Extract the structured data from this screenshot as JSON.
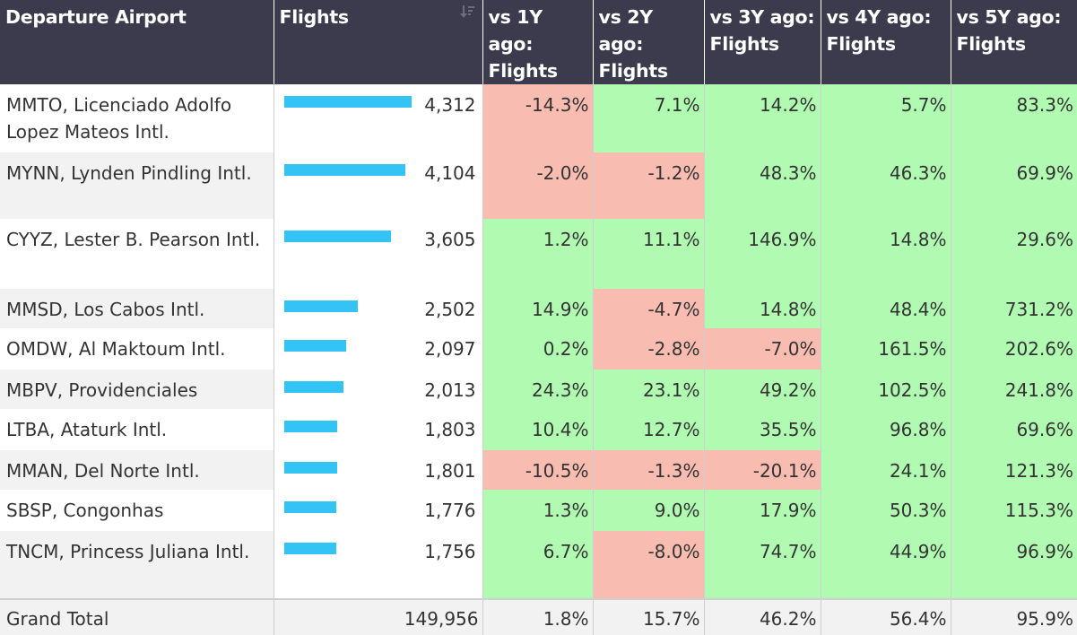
{
  "headers": {
    "airport": "Departure Airport",
    "flights": "Flights",
    "vs1": "vs 1Y ago: Flights",
    "vs2": "vs 2Y ago: Flights",
    "vs3": "vs 3Y ago: Flights",
    "vs4": "vs 4Y ago: Flights",
    "vs5": "vs 5Y ago: Flights"
  },
  "icons": {
    "sort": "sort-descending-icon"
  },
  "colors": {
    "header_bg": "#3c3b4e",
    "bar": "#33c4f5",
    "positive": "#b1fab2",
    "negative": "#f9bcb0"
  },
  "bar_scale_max": 4312,
  "rows": [
    {
      "airport": "MMTO, Licenciado Adolfo Lopez Mateos Intl.",
      "flights": 4312,
      "flights_label": "4,312",
      "vs1": "-14.3%",
      "vs2": "7.1%",
      "vs3": "14.2%",
      "vs4": "5.7%",
      "vs5": "83.3%"
    },
    {
      "airport": "MYNN, Lynden Pindling Intl.",
      "flights": 4104,
      "flights_label": "4,104",
      "vs1": "-2.0%",
      "vs2": "-1.2%",
      "vs3": "48.3%",
      "vs4": "46.3%",
      "vs5": "69.9%"
    },
    {
      "airport": "CYYZ, Lester B. Pearson Intl.",
      "flights": 3605,
      "flights_label": "3,605",
      "vs1": "1.2%",
      "vs2": "11.1%",
      "vs3": "146.9%",
      "vs4": "14.8%",
      "vs5": "29.6%"
    },
    {
      "airport": "MMSD, Los Cabos Intl.",
      "flights": 2502,
      "flights_label": "2,502",
      "vs1": "14.9%",
      "vs2": "-4.7%",
      "vs3": "14.8%",
      "vs4": "48.4%",
      "vs5": "731.2%"
    },
    {
      "airport": "OMDW, Al Maktoum Intl.",
      "flights": 2097,
      "flights_label": "2,097",
      "vs1": "0.2%",
      "vs2": "-2.8%",
      "vs3": "-7.0%",
      "vs4": "161.5%",
      "vs5": "202.6%"
    },
    {
      "airport": "MBPV, Providenciales",
      "flights": 2013,
      "flights_label": "2,013",
      "vs1": "24.3%",
      "vs2": "23.1%",
      "vs3": "49.2%",
      "vs4": "102.5%",
      "vs5": "241.8%"
    },
    {
      "airport": "LTBA, Ataturk Intl.",
      "flights": 1803,
      "flights_label": "1,803",
      "vs1": "10.4%",
      "vs2": "12.7%",
      "vs3": "35.5%",
      "vs4": "96.8%",
      "vs5": "69.6%"
    },
    {
      "airport": "MMAN, Del Norte Intl.",
      "flights": 1801,
      "flights_label": "1,801",
      "vs1": "-10.5%",
      "vs2": "-1.3%",
      "vs3": "-20.1%",
      "vs4": "24.1%",
      "vs5": "121.3%"
    },
    {
      "airport": "SBSP, Congonhas",
      "flights": 1776,
      "flights_label": "1,776",
      "vs1": "1.3%",
      "vs2": "9.0%",
      "vs3": "17.9%",
      "vs4": "50.3%",
      "vs5": "115.3%"
    },
    {
      "airport": "TNCM, Princess Juliana Intl.",
      "flights": 1756,
      "flights_label": "1,756",
      "vs1": "6.7%",
      "vs2": "-8.0%",
      "vs3": "74.7%",
      "vs4": "44.9%",
      "vs5": "96.9%"
    }
  ],
  "total": {
    "label": "Grand Total",
    "flights": "149,956",
    "vs1": "1.8%",
    "vs2": "15.7%",
    "vs3": "46.2%",
    "vs4": "56.4%",
    "vs5": "95.9%"
  }
}
